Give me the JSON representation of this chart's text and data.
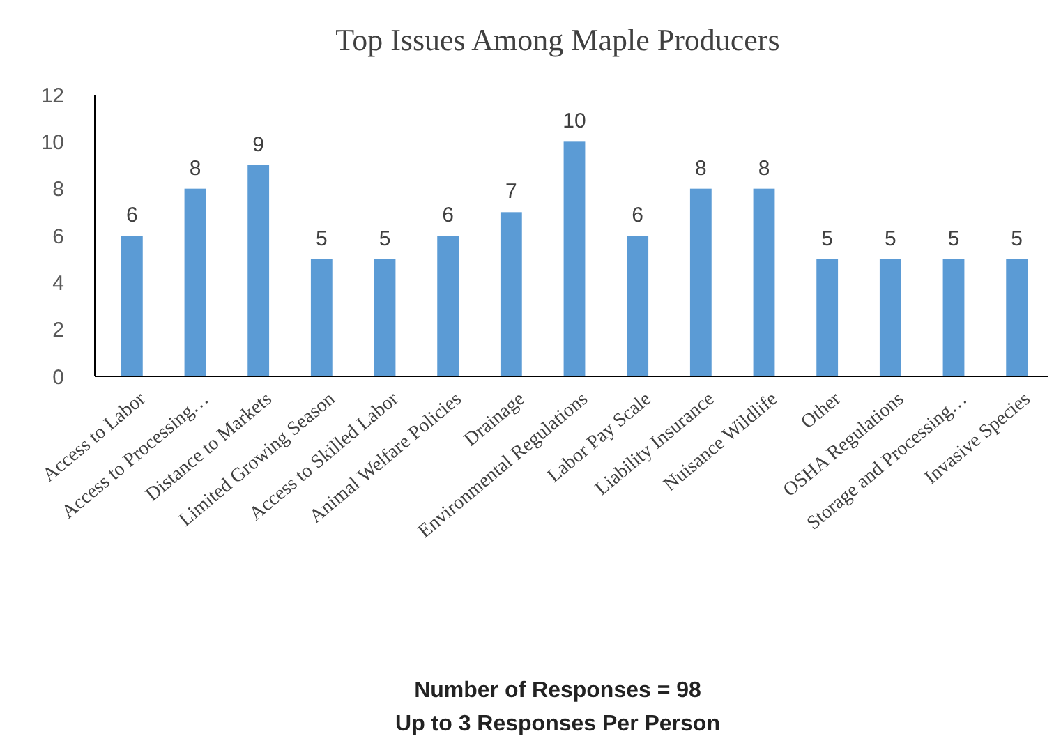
{
  "chart_data": {
    "type": "bar",
    "title": "Top Issues Among Maple Producers",
    "categories": [
      "Access to Labor",
      "Access to Processing…",
      "Distance to Markets",
      "Limited Growing Season",
      "Access to Skilled Labor",
      "Animal Welfare Policies",
      "Drainage",
      "Environmental Regulations",
      "Labor Pay Scale",
      "Liability Insurance",
      "Nuisance Wildlife",
      "Other",
      "OSHA Regulations",
      "Storage and Processing…",
      "Invasive Species"
    ],
    "values": [
      6,
      8,
      9,
      5,
      5,
      6,
      7,
      10,
      6,
      8,
      8,
      5,
      5,
      5,
      5
    ],
    "color": "#5b9bd5",
    "ylim": [
      0,
      12
    ],
    "yticks": [
      0,
      2,
      4,
      6,
      8,
      10,
      12
    ],
    "grid": false,
    "data_labels": true,
    "annotations": [
      "Number of Responses = 98",
      "Up to 3 Responses Per Person"
    ]
  }
}
